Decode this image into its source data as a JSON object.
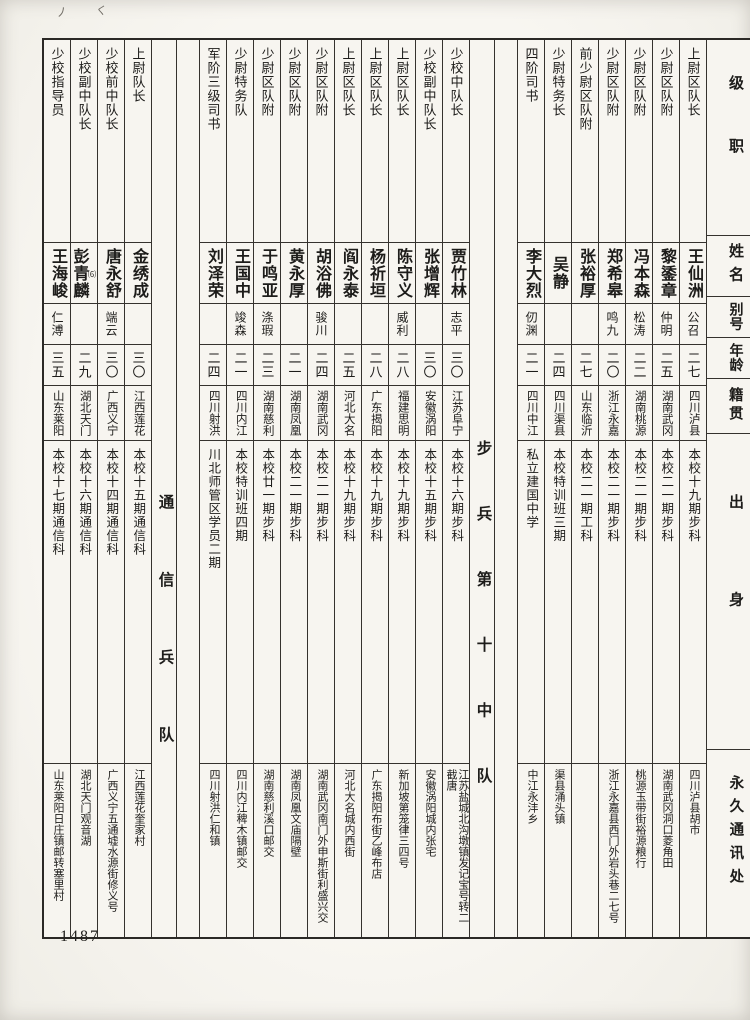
{
  "page": {
    "number": "1487"
  },
  "table": {
    "headers": {
      "rank": "级职",
      "name": "姓名",
      "alias": "别号",
      "age": "年龄",
      "native": "籍贯",
      "origin": "出身",
      "address": "永久通讯处"
    },
    "columns": [
      {
        "type": "person",
        "rank": "上尉区队长",
        "name": "王仙洲",
        "alias": "公召",
        "age": "二七",
        "native": "四川泸县",
        "origin": "本校十九期步科",
        "address": "四川泸县胡市"
      },
      {
        "type": "person",
        "rank": "少尉区队附",
        "name": "黎鋈章",
        "alias": "仲明",
        "age": "二五",
        "native": "湖南武冈",
        "origin": "本校二一期步科",
        "address": "湖南武冈洞口菱角田"
      },
      {
        "type": "person",
        "rank": "少尉区队附",
        "name": "冯本森",
        "alias": "松涛",
        "age": "二二",
        "native": "湖南桃源",
        "origin": "本校二一期步科",
        "address": "桃源玉带街裕源粮行"
      },
      {
        "type": "person",
        "rank": "少尉区队附",
        "name": "郑希皋",
        "alias": "鸣九",
        "age": "二〇",
        "native": "浙江永嘉",
        "origin": "本校二一期步科",
        "address": "浙江永嘉县西门外岩头巷二七号"
      },
      {
        "type": "person",
        "rank": "前少尉区队附",
        "name": "张裕厚",
        "alias": "",
        "age": "二七",
        "native": "山东临沂",
        "origin": "本校二一期工科",
        "address": ""
      },
      {
        "type": "person",
        "rank": "少尉特务长",
        "name": "吴静",
        "alias": "",
        "age": "二四",
        "native": "四川渠县",
        "origin": "本校特训班三期",
        "address": "渠县涌头镇"
      },
      {
        "type": "person",
        "rank": "四阶司书",
        "name": "李大烈",
        "alias": "仞渊",
        "age": "二一",
        "native": "四川中江",
        "origin": "私立建国中学",
        "address": "中江永沣乡"
      },
      {
        "type": "section",
        "label": "步兵第十中队"
      },
      {
        "type": "person",
        "rank": "少校中队长",
        "name": "贾竹林",
        "alias": "志平",
        "age": "三〇",
        "native": "江苏阜宁",
        "origin": "本校十六期步科",
        "address": "江苏盐城北沟墩镇发记宝号转二截唐"
      },
      {
        "type": "person",
        "rank": "少校副中队长",
        "name": "张增辉",
        "alias": "",
        "age": "三〇",
        "native": "安徽涡阳",
        "origin": "本校十五期步科",
        "address": "安徽涡阳城内张宅"
      },
      {
        "type": "person",
        "rank": "上尉区队长",
        "name": "陈守义",
        "alias": "威利",
        "age": "二八",
        "native": "福建思明",
        "origin": "本校十九期步科",
        "address": "新加坡第笼律三四号"
      },
      {
        "type": "person",
        "rank": "上尉区队长",
        "name": "杨祈垣",
        "alias": "",
        "age": "二八",
        "native": "广东揭阳",
        "origin": "本校十九期步科",
        "address": "广东揭阳布街乙峰布店"
      },
      {
        "type": "person",
        "rank": "上尉区队长",
        "name": "阎永泰",
        "alias": "",
        "age": "二五",
        "native": "河北大名",
        "origin": "本校十九期步科",
        "address": "河北大名城内西街"
      },
      {
        "type": "person",
        "rank": "少尉区队附",
        "name": "胡浴佛",
        "alias": "骏川",
        "age": "二四",
        "native": "湖南武冈",
        "origin": "本校二一期步科",
        "address": "湖南武冈南门外申斯街利盛兴交"
      },
      {
        "type": "person",
        "rank": "少尉区队附",
        "name": "黄永厚",
        "alias": "",
        "age": "二一",
        "native": "湖南凤凰",
        "origin": "本校二一期步科",
        "address": "湖南凤凰文庙隔壁"
      },
      {
        "type": "person",
        "rank": "少尉区队附",
        "name": "于鸣亚",
        "alias": "涤瑕",
        "age": "二三",
        "native": "湖南慈利",
        "origin": "本校廿一期步科",
        "address": "湖南慈利溪口邮交"
      },
      {
        "type": "person",
        "rank": "少尉特务队",
        "name": "王国中",
        "alias": "竣森",
        "age": "二一",
        "native": "四川内江",
        "origin": "本校特训班四期",
        "address": "四川内江稗木镇邮交"
      },
      {
        "type": "person",
        "rank": "军阶三级司书",
        "name": "刘泽荣",
        "alias": "",
        "age": "二四",
        "native": "四川射洪",
        "origin": "川北师管区学员二期",
        "address": "四川射洪仁和镇"
      },
      {
        "type": "section",
        "label": "通信兵队"
      },
      {
        "type": "person",
        "rank": "上尉队长",
        "name": "金绣成",
        "alias": "",
        "age": "三〇",
        "native": "江西莲花",
        "origin": "本校十五期通信科",
        "address": "江西莲花奎家村"
      },
      {
        "type": "person",
        "rank": "少校前中队长",
        "name": "唐永舒",
        "alias": "端云",
        "age": "三〇",
        "native": "广西义宁",
        "origin": "本校十四期通信科",
        "address": "广西义宁五通墟水源街修义号"
      },
      {
        "type": "person",
        "rank": "少校副中队长",
        "name": "彭青麟",
        "note": "⑹",
        "alias": "",
        "age": "二九",
        "native": "湖北天门",
        "origin": "本校十六期通信科",
        "address": "湖北天门观音湖"
      },
      {
        "type": "person",
        "rank": "少校指导员",
        "name": "王海峻",
        "alias": "仁溥",
        "age": "三五",
        "native": "山东莱阳",
        "origin": "本校十七期通信科",
        "address": "山东莱阳日庄镇邮转塞里村"
      }
    ]
  }
}
